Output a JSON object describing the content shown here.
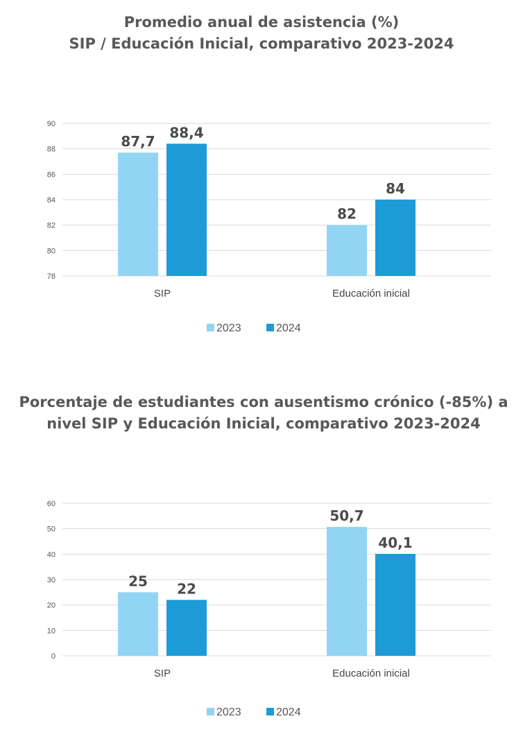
{
  "colors": {
    "series2023": "#92d4f4",
    "series2024": "#1c9bd7",
    "grid": "#d9d9d9",
    "text": "#555555"
  },
  "chart_data": [
    {
      "type": "bar",
      "title": "Promedio anual de asistencia (%)",
      "subtitle": "SIP / Educación Inicial, comparativo 2023-2024",
      "categories": [
        "SIP",
        "Educación inicial"
      ],
      "series": [
        {
          "name": "2023",
          "values": [
            87.7,
            82
          ],
          "labels": [
            "87,7",
            "82"
          ]
        },
        {
          "name": "2024",
          "values": [
            88.4,
            84
          ],
          "labels": [
            "88,4",
            "84"
          ]
        }
      ],
      "yticks": [
        "78",
        "80",
        "82",
        "84",
        "86",
        "88",
        "90"
      ],
      "ylim": [
        78,
        90
      ],
      "grid": true,
      "legend": "bottom-center"
    },
    {
      "type": "bar",
      "title": "Porcentaje de estudiantes con ausentismo crónico (-85%) a",
      "subtitle": "nivel SIP y Educación Inicial, comparativo 2023-2024",
      "categories": [
        "SIP",
        "Educación inicial"
      ],
      "series": [
        {
          "name": "2023",
          "values": [
            25,
            50.7
          ],
          "labels": [
            "25",
            "50,7"
          ]
        },
        {
          "name": "2024",
          "values": [
            22,
            40.1
          ],
          "labels": [
            "22",
            "40,1"
          ]
        }
      ],
      "yticks": [
        "0",
        "10",
        "20",
        "30",
        "40",
        "50",
        "60"
      ],
      "ylim": [
        0,
        60
      ],
      "grid": true,
      "legend": "bottom-center"
    }
  ]
}
